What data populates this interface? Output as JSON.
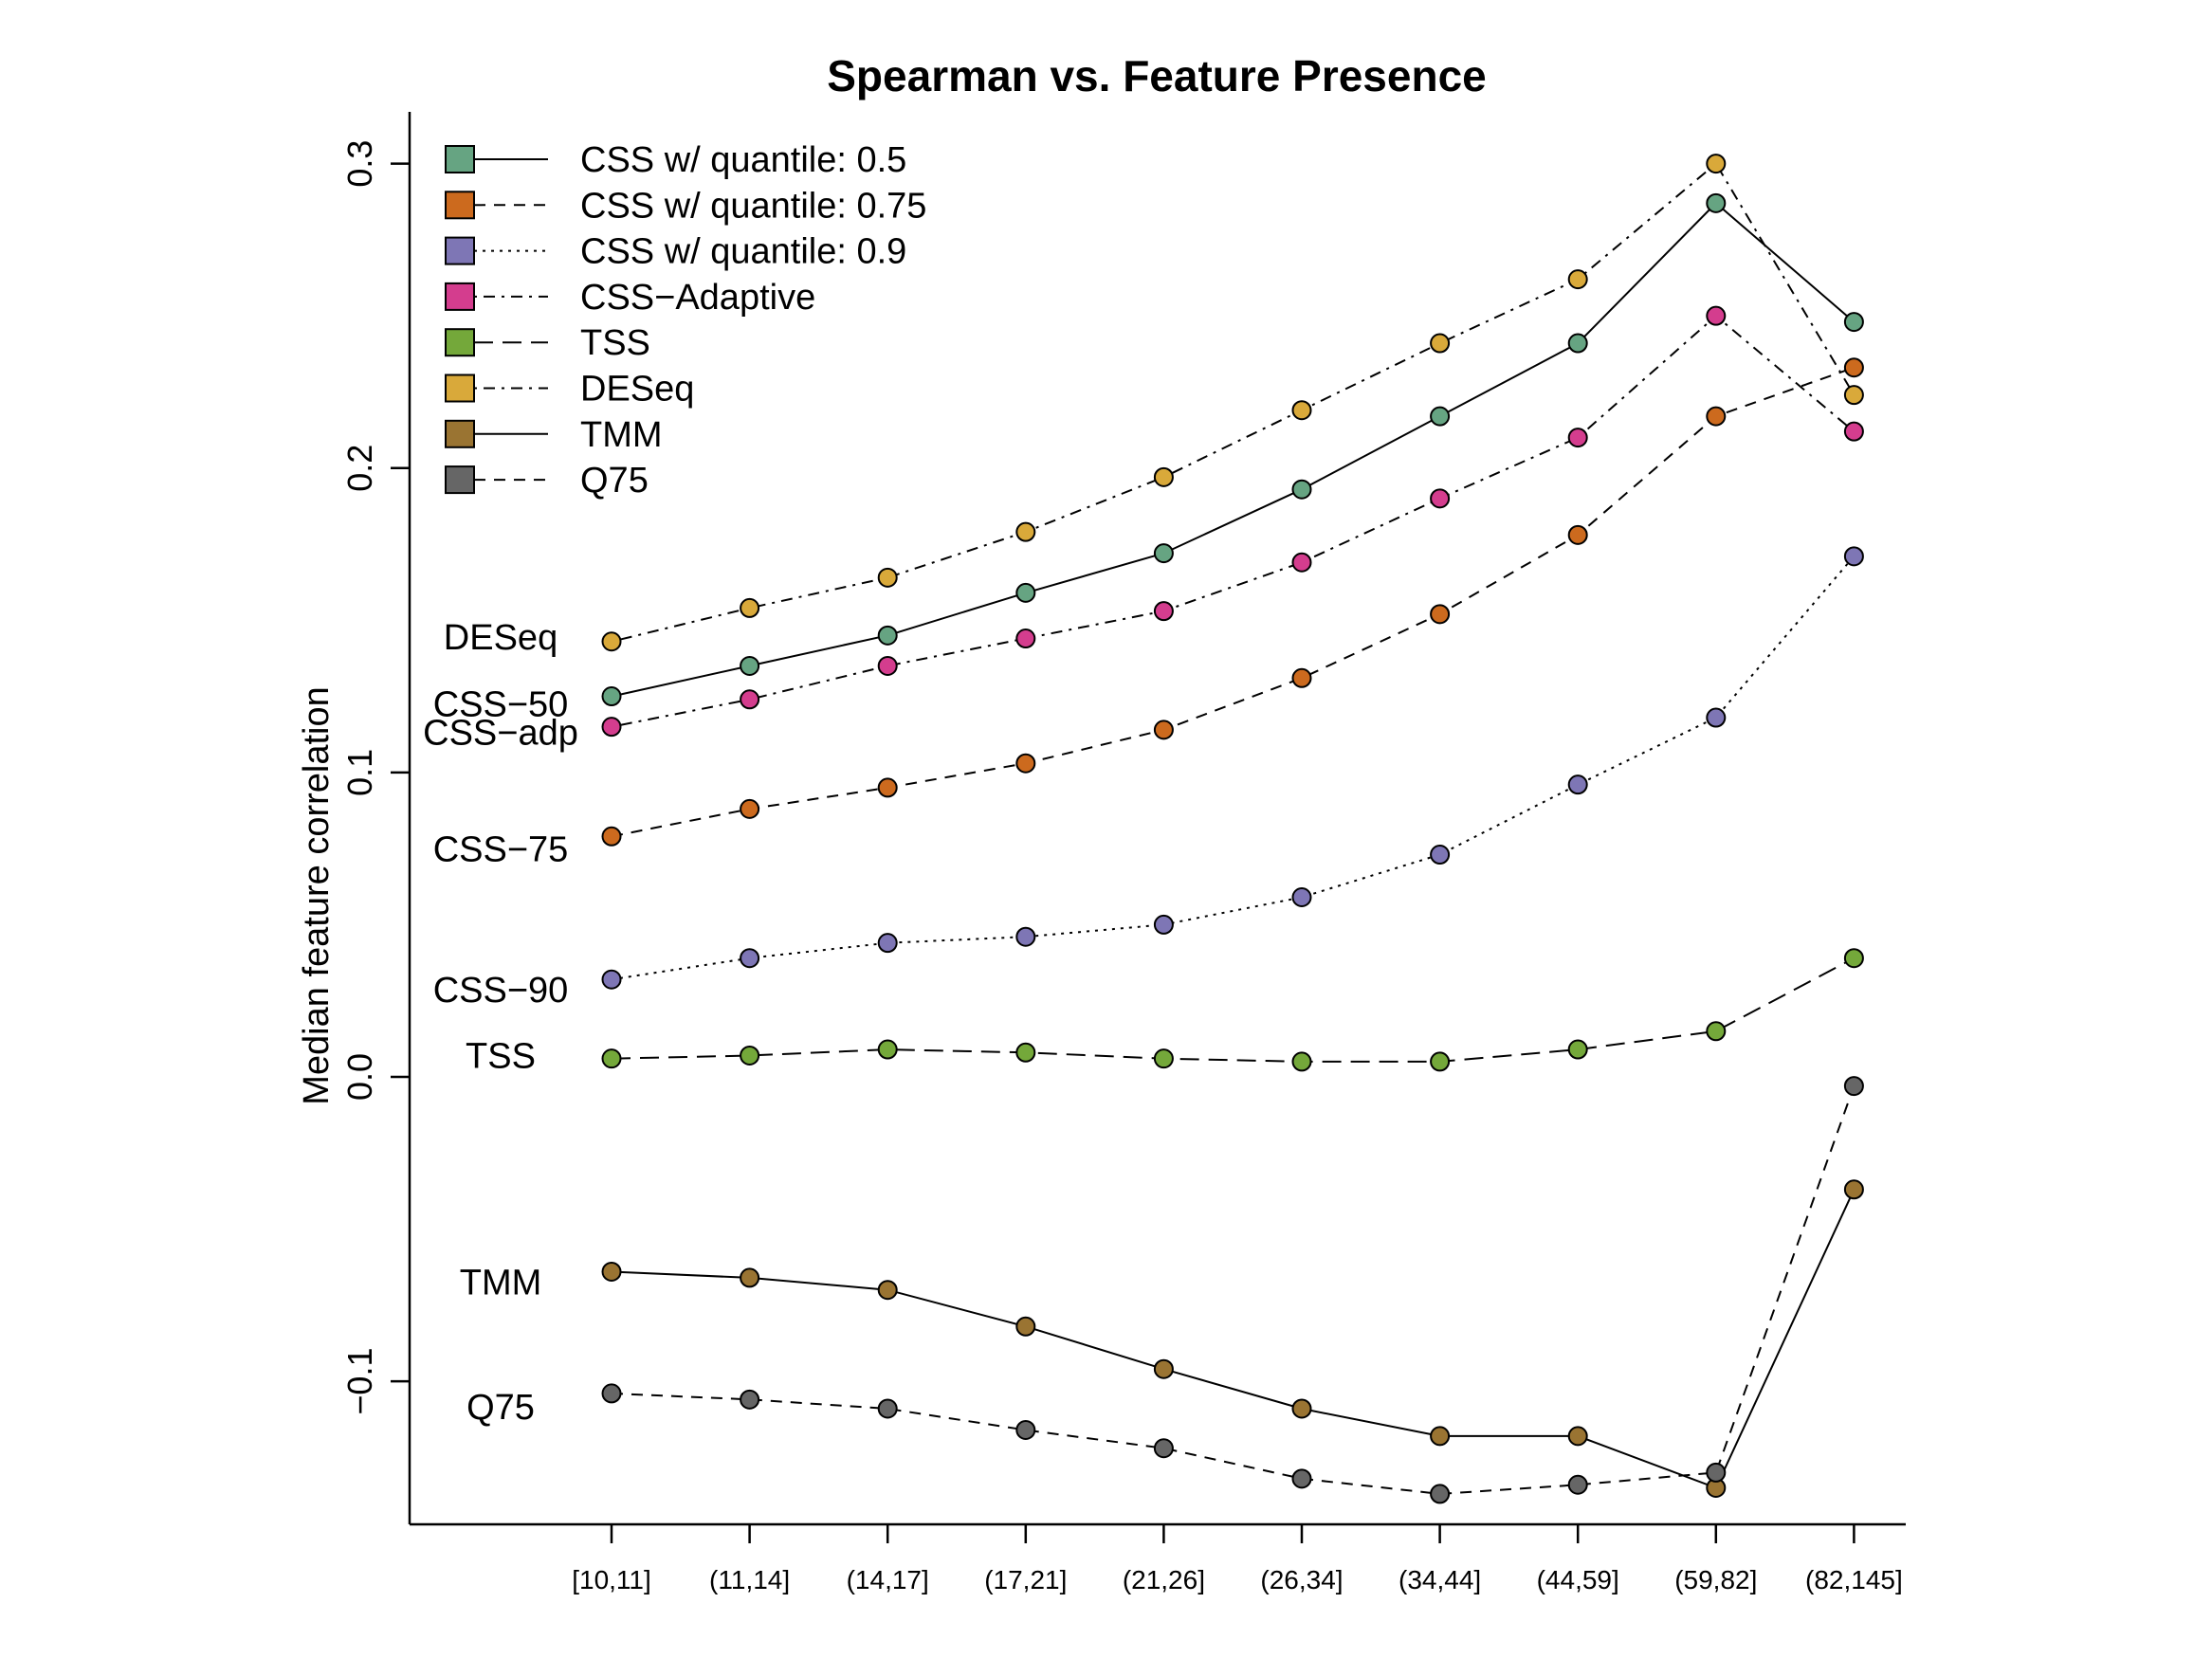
{
  "chart_data": {
    "type": "line",
    "title": "Spearman vs. Feature Presence",
    "xlabel": "",
    "ylabel": "Median feature correlation",
    "categories": [
      "[10,11]",
      "(11,14]",
      "(14,17]",
      "(17,21]",
      "(21,26]",
      "(26,34]",
      "(34,44]",
      "(44,59]",
      "(59,82]",
      "(82,145]"
    ],
    "ylim": [
      -0.147,
      0.317
    ],
    "yticks": [
      -0.1,
      0.0,
      0.1,
      0.2,
      0.3
    ],
    "ytick_labels": [
      "−0.1",
      "0.0",
      "0.1",
      "0.2",
      "0.3"
    ],
    "grid": false,
    "legend_position": "top-left",
    "series": [
      {
        "name": "CSS w/ quantile: 0.5",
        "label": "CSS−50",
        "color": "#66A482",
        "dash": "solid",
        "values": [
          0.125,
          0.135,
          0.145,
          0.159,
          0.172,
          0.193,
          0.217,
          0.241,
          0.287,
          0.248
        ]
      },
      {
        "name": "CSS w/ quantile: 0.75",
        "label": "CSS−75",
        "color": "#CC6A1E",
        "dash": "dashed",
        "values": [
          0.079,
          0.088,
          0.095,
          0.103,
          0.114,
          0.131,
          0.152,
          0.178,
          0.217,
          0.233
        ]
      },
      {
        "name": "CSS w/ quantile: 0.9",
        "label": "CSS−90",
        "color": "#7E76B5",
        "dash": "dotted",
        "values": [
          0.032,
          0.039,
          0.044,
          0.046,
          0.05,
          0.059,
          0.073,
          0.096,
          0.118,
          0.171
        ]
      },
      {
        "name": "CSS−Adaptive",
        "label": "CSS−adp",
        "color": "#D43D8E",
        "dash": "dotdash",
        "values": [
          0.115,
          0.124,
          0.135,
          0.144,
          0.153,
          0.169,
          0.19,
          0.21,
          0.25,
          0.212
        ]
      },
      {
        "name": "TSS",
        "label": "TSS",
        "color": "#74A83A",
        "dash": "longdash",
        "values": [
          0.006,
          0.007,
          0.009,
          0.008,
          0.006,
          0.005,
          0.005,
          0.009,
          0.015,
          0.039
        ]
      },
      {
        "name": "DESeq",
        "label": "DESeq",
        "color": "#D9A93A",
        "dash": "dotdash",
        "values": [
          0.143,
          0.154,
          0.164,
          0.179,
          0.197,
          0.219,
          0.241,
          0.262,
          0.3,
          0.224
        ]
      },
      {
        "name": "TMM",
        "label": "TMM",
        "color": "#9A7432",
        "dash": "solid",
        "values": [
          -0.064,
          -0.066,
          -0.07,
          -0.082,
          -0.096,
          -0.109,
          -0.118,
          -0.118,
          -0.135,
          -0.037
        ]
      },
      {
        "name": "Q75",
        "label": "Q75",
        "color": "#666666",
        "dash": "dashed",
        "values": [
          -0.104,
          -0.106,
          -0.109,
          -0.116,
          -0.122,
          -0.132,
          -0.137,
          -0.134,
          -0.13,
          -0.003
        ]
      }
    ]
  }
}
